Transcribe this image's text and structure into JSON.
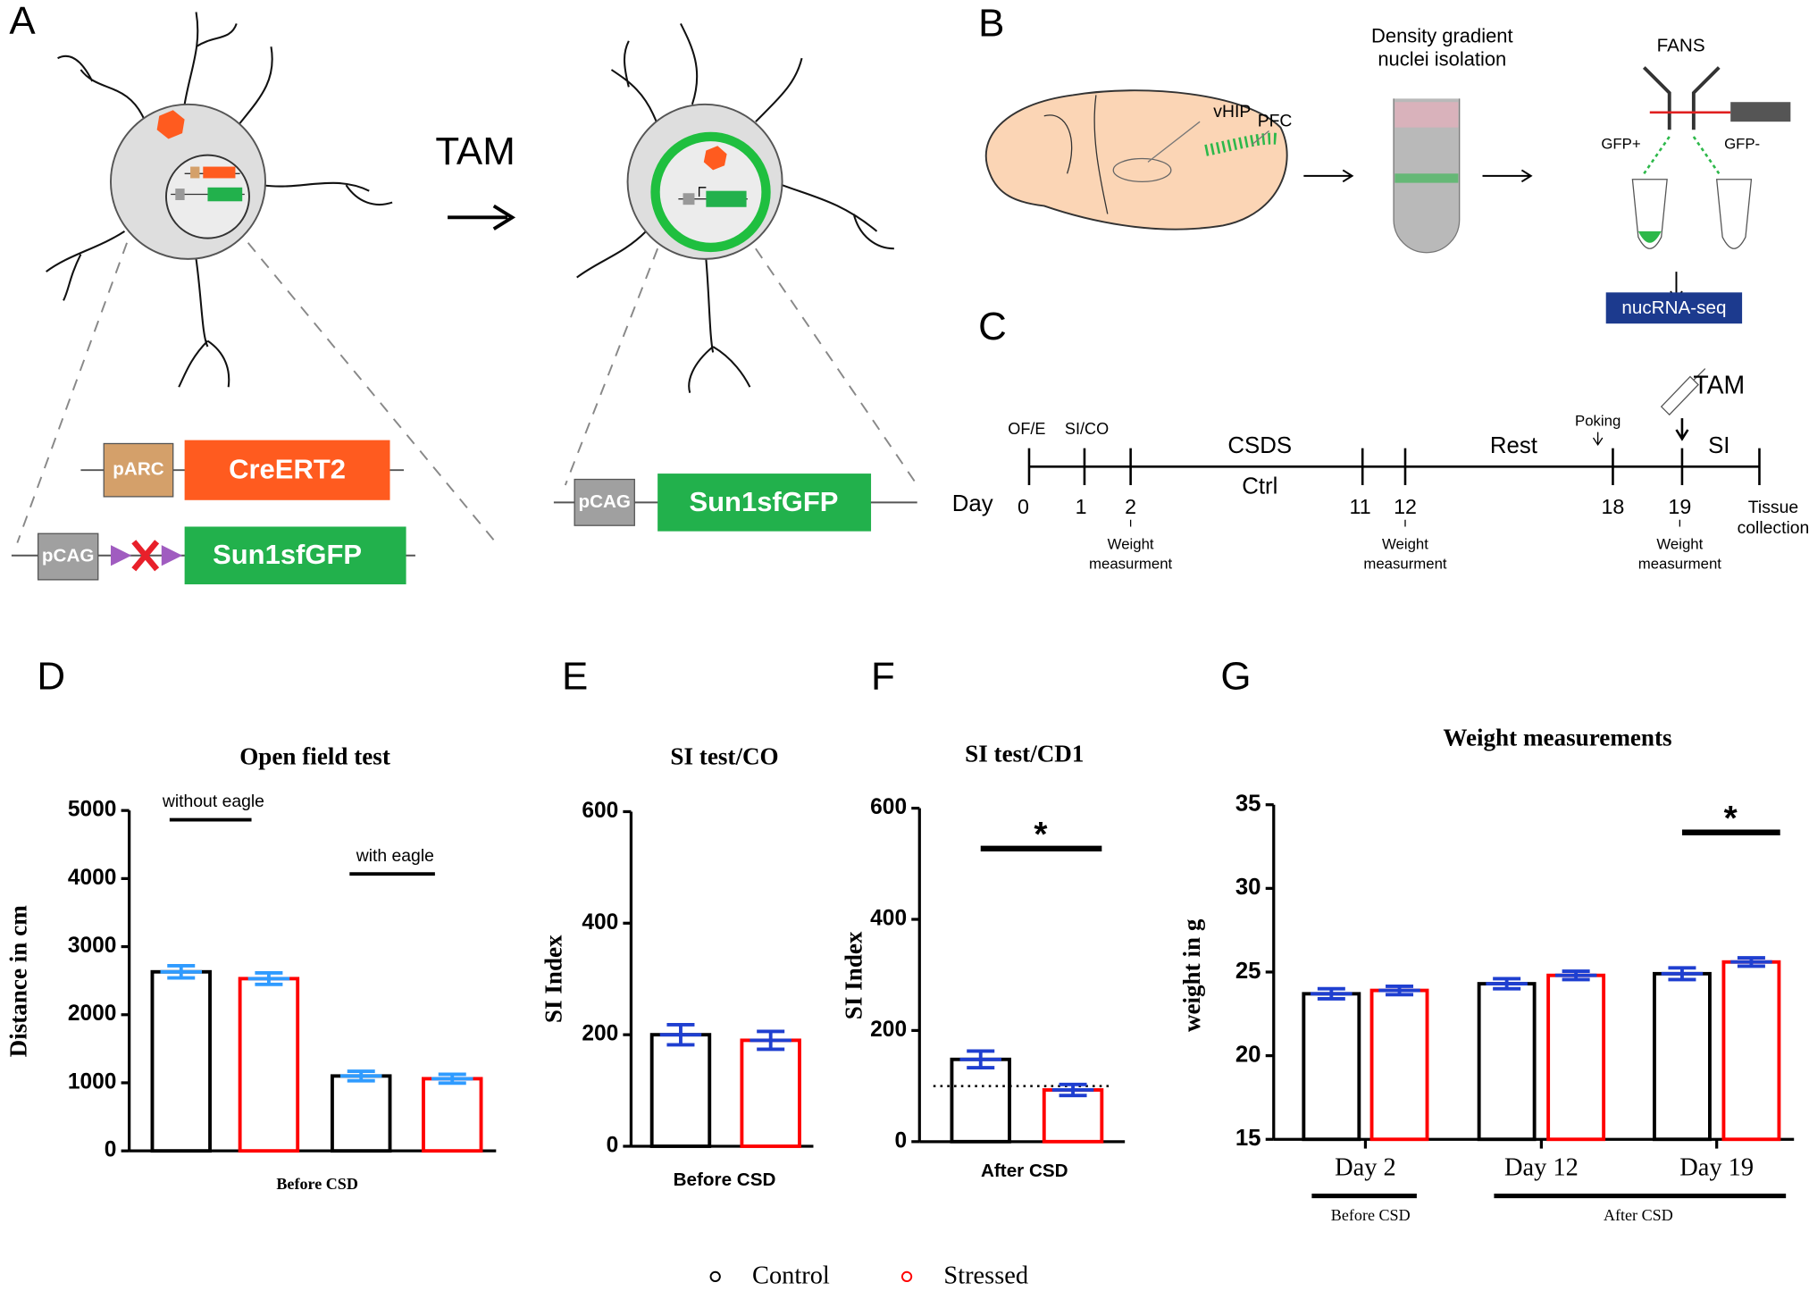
{
  "panel_labels": [
    "A",
    "B",
    "C",
    "D",
    "E",
    "F",
    "G"
  ],
  "panel_a": {
    "arrow_label": "TAM",
    "before": {
      "promoter_1": "pARC",
      "gene_1": "CreERT2",
      "promoter_2": "pCAG",
      "gene_2": "Sun1sfGFP"
    },
    "after": {
      "promoter": "pCAG",
      "gene": "Sun1sfGFP"
    }
  },
  "panel_b": {
    "regions": [
      "vHIP",
      "PFC"
    ],
    "step_1": [
      "Density gradient",
      "nuclei isolation"
    ],
    "step_2": "FANS",
    "gates": [
      "GFP+",
      "GFP-"
    ],
    "output": "nucRNA-seq"
  },
  "panel_c": {
    "injection": "TAM",
    "poking": "Poking",
    "day_label": "Day",
    "days": [
      "0",
      "1",
      "2",
      "11",
      "12",
      "18",
      "19"
    ],
    "tests": [
      "OF/E",
      "SI/CO",
      "SI"
    ],
    "phases": [
      "CSDS",
      "Ctrl",
      "Rest"
    ],
    "end": [
      "Tissue",
      "collection"
    ],
    "weight": [
      "Weight",
      "measurment"
    ]
  },
  "chart_data": [
    {
      "type": "bar",
      "title": "Open field test",
      "y_label": "Distance in cm",
      "x_label": "Before CSD",
      "categories": [
        "without eagle",
        "with eagle"
      ],
      "ylim": [
        0,
        5000
      ],
      "yticks": [
        0,
        1000,
        2000,
        3000,
        4000,
        5000
      ],
      "error_color": "#2f9bff",
      "series": [
        {
          "color": "#000000",
          "values": [
            2630,
            1100
          ],
          "errors": [
            90,
            70
          ]
        },
        {
          "color": "#ff0000",
          "values": [
            2530,
            1060
          ],
          "errors": [
            85,
            65
          ]
        }
      ]
    },
    {
      "type": "bar",
      "title": "SI test/CO",
      "y_label": "SI Index",
      "x_label": "Before CSD",
      "categories": [
        null
      ],
      "ylim": [
        0,
        600
      ],
      "yticks": [
        0,
        200,
        400,
        600
      ],
      "error_color": "#1f3fd0",
      "series": [
        {
          "color": "#000000",
          "values": [
            200
          ],
          "errors": [
            18
          ]
        },
        {
          "color": "#ff0000",
          "values": [
            190
          ],
          "errors": [
            16
          ]
        }
      ]
    },
    {
      "type": "bar",
      "title": "SI test/CD1",
      "y_label": "SI Index",
      "x_label": "After CSD",
      "categories": [
        null
      ],
      "ylim": [
        0,
        600
      ],
      "yticks": [
        0,
        200,
        400,
        600
      ],
      "error_color": "#1f3fd0",
      "reference_line": 100,
      "significance": [
        {
          "category": 0,
          "label": "*"
        }
      ],
      "series": [
        {
          "color": "#000000",
          "values": [
            148
          ],
          "errors": [
            15
          ]
        },
        {
          "color": "#ff0000",
          "values": [
            93
          ],
          "errors": [
            10
          ]
        }
      ]
    },
    {
      "type": "bar",
      "title": "Weight measurements",
      "y_label": "weight in g",
      "categories": [
        "Day 2",
        "Day 12",
        "Day 19"
      ],
      "ylim": [
        15,
        35
      ],
      "yticks": [
        15,
        20,
        25,
        30,
        35
      ],
      "error_color": "#1f3fd0",
      "x_groups": [
        "Before CSD",
        "After CSD"
      ],
      "significance": [
        {
          "category": 2,
          "label": "*"
        }
      ],
      "series": [
        {
          "name": "Control",
          "color": "#000000",
          "values": [
            23.7,
            24.3,
            24.9
          ],
          "errors": [
            0.3,
            0.3,
            0.35
          ]
        },
        {
          "name": "Stressed",
          "color": "#ff0000",
          "values": [
            23.9,
            24.8,
            25.6
          ],
          "errors": [
            0.25,
            0.25,
            0.25
          ]
        }
      ]
    }
  ]
}
